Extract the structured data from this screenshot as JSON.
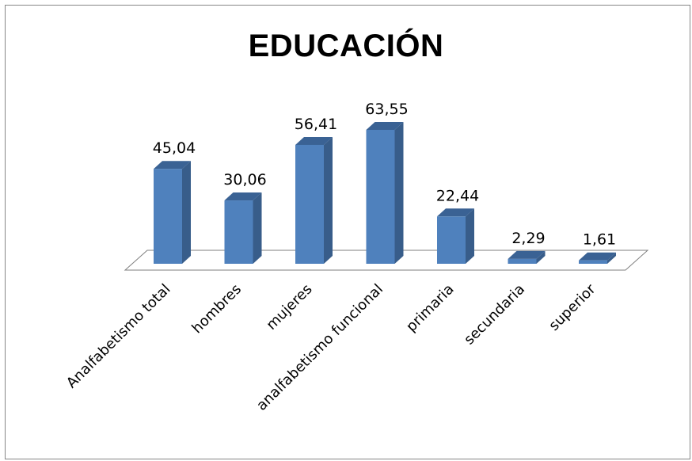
{
  "chart_data": {
    "type": "bar",
    "title": "EDUCACIÓN",
    "categories": [
      "Analfabetismo total",
      "hombres",
      "mujeres",
      "analfabetismo funcional",
      "primaria",
      "secundaria",
      "superior"
    ],
    "values": [
      45.04,
      30.06,
      56.41,
      63.55,
      22.44,
      2.29,
      1.61
    ],
    "value_labels": [
      "45,04",
      "30,06",
      "56,41",
      "63,55",
      "22,44",
      "2,29",
      "1,61"
    ],
    "xlabel": "",
    "ylabel": "",
    "ylim": [
      0,
      70
    ],
    "style": "3d-column",
    "grid": false,
    "legend": "none",
    "colors": {
      "bar_front": "#4F81BD",
      "bar_side": "#385D8A",
      "bar_top": "#3A6294",
      "floor": "#FFFFFF",
      "floor_edge": "#7F7F7F",
      "frame": "#868686"
    }
  }
}
